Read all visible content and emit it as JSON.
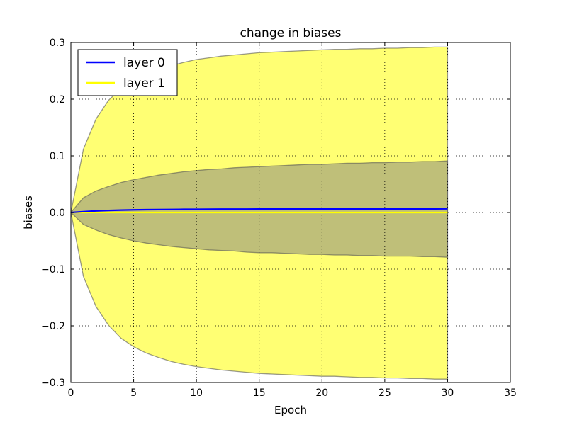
{
  "chart_data": {
    "type": "area",
    "title": "change in biases",
    "xlabel": "Epoch",
    "ylabel": "biases",
    "xlim": [
      0,
      35
    ],
    "ylim": [
      -0.3,
      0.3
    ],
    "grid": true,
    "legend_position": "top-left",
    "x_ticks": [
      0,
      5,
      10,
      15,
      20,
      25,
      30,
      35
    ],
    "y_ticks": [
      -0.3,
      -0.2,
      -0.1,
      0.0,
      0.1,
      0.2,
      0.3
    ],
    "x_tick_labels": [
      "0",
      "5",
      "10",
      "15",
      "20",
      "25",
      "30",
      "35"
    ],
    "y_tick_labels": [
      "−0.3",
      "−0.2",
      "−0.1",
      "0.0",
      "0.1",
      "0.2",
      "0.3"
    ],
    "x": [
      0,
      1,
      2,
      3,
      4,
      5,
      6,
      7,
      8,
      9,
      10,
      11,
      12,
      13,
      14,
      15,
      16,
      17,
      18,
      19,
      20,
      21,
      22,
      23,
      24,
      25,
      26,
      27,
      28,
      29,
      30
    ],
    "series": [
      {
        "name": "layer 0",
        "color": "#0000ff",
        "fill_color": "#808080",
        "mean": [
          0.0,
          0.0015,
          0.0028,
          0.0036,
          0.0042,
          0.0047,
          0.005,
          0.0052,
          0.0054,
          0.0056,
          0.0057,
          0.0058,
          0.0059,
          0.006,
          0.006,
          0.0061,
          0.0061,
          0.0062,
          0.0062,
          0.0062,
          0.0063,
          0.0063,
          0.0063,
          0.0063,
          0.0064,
          0.0064,
          0.0064,
          0.0064,
          0.0064,
          0.0064,
          0.0065
        ],
        "upper": [
          0.0,
          0.026,
          0.038,
          0.046,
          0.053,
          0.058,
          0.062,
          0.066,
          0.069,
          0.072,
          0.074,
          0.076,
          0.077,
          0.079,
          0.08,
          0.081,
          0.082,
          0.083,
          0.084,
          0.085,
          0.085,
          0.086,
          0.087,
          0.087,
          0.088,
          0.088,
          0.089,
          0.089,
          0.09,
          0.09,
          0.091
        ],
        "lower": [
          0.0,
          -0.021,
          -0.031,
          -0.039,
          -0.045,
          -0.05,
          -0.054,
          -0.057,
          -0.06,
          -0.062,
          -0.064,
          -0.066,
          -0.067,
          -0.068,
          -0.07,
          -0.071,
          -0.071,
          -0.072,
          -0.073,
          -0.074,
          -0.074,
          -0.075,
          -0.075,
          -0.076,
          -0.076,
          -0.077,
          -0.077,
          -0.077,
          -0.078,
          -0.078,
          -0.079
        ]
      },
      {
        "name": "layer 1",
        "color": "#ffff00",
        "fill_color": "#ffff00",
        "mean": [
          0.0,
          0.0,
          0.0,
          0.0,
          0.0,
          0.0,
          0.0,
          0.0,
          0.0,
          0.0,
          0.0,
          0.0,
          0.0,
          0.0,
          0.0,
          0.0,
          0.0,
          0.0,
          0.0,
          0.0,
          0.0,
          0.0,
          0.0,
          0.0,
          0.0,
          0.0,
          0.0,
          0.0,
          0.0,
          0.0,
          0.0
        ],
        "upper": [
          0.0,
          0.112,
          0.165,
          0.198,
          0.219,
          0.233,
          0.244,
          0.252,
          0.259,
          0.265,
          0.27,
          0.273,
          0.276,
          0.278,
          0.28,
          0.282,
          0.283,
          0.284,
          0.285,
          0.286,
          0.287,
          0.288,
          0.288,
          0.289,
          0.289,
          0.29,
          0.29,
          0.291,
          0.291,
          0.292,
          0.292
        ],
        "lower": [
          0.0,
          -0.113,
          -0.166,
          -0.199,
          -0.222,
          -0.237,
          -0.248,
          -0.256,
          -0.263,
          -0.268,
          -0.272,
          -0.275,
          -0.278,
          -0.28,
          -0.282,
          -0.284,
          -0.285,
          -0.286,
          -0.287,
          -0.288,
          -0.289,
          -0.289,
          -0.29,
          -0.291,
          -0.291,
          -0.292,
          -0.292,
          -0.293,
          -0.293,
          -0.294,
          -0.294
        ]
      }
    ]
  }
}
